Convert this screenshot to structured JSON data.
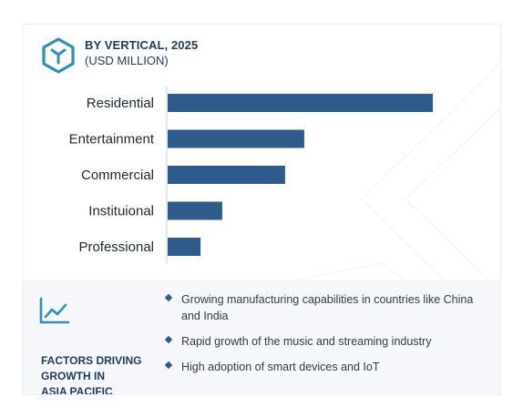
{
  "header": {
    "title": "BY VERTICAL, 2025",
    "subtitle": "(USD MILLION)",
    "logo_icon": "cube-hexagon-icon"
  },
  "colors": {
    "bar": "#2f5b8a",
    "title": "#1f3a5a",
    "axis": "#c9d1dc",
    "panel": "#f5f7fa"
  },
  "chart_data": {
    "type": "bar",
    "orientation": "horizontal",
    "title": "BY VERTICAL, 2025",
    "subtitle": "(USD MILLION)",
    "categories": [
      "Residential",
      "Entertainment",
      "Commercial",
      "Instituional",
      "Professional"
    ],
    "values": [
      100,
      51.5,
      44.3,
      20.6,
      12.4
    ],
    "xlim": [
      0,
      100
    ],
    "xlabel": "",
    "ylabel": "",
    "grid": false,
    "legend": "none",
    "value_axis_labels_shown": false
  },
  "factors_panel": {
    "icon": "trend-chart-icon",
    "title": "FACTORS DRIVING\nGROWTH IN\nASIA PACIFIC",
    "items": [
      "Growing manufacturing capabilities in countries like China and India",
      "Rapid growth of the music and streaming industry",
      "High adoption of smart devices and IoT"
    ]
  }
}
